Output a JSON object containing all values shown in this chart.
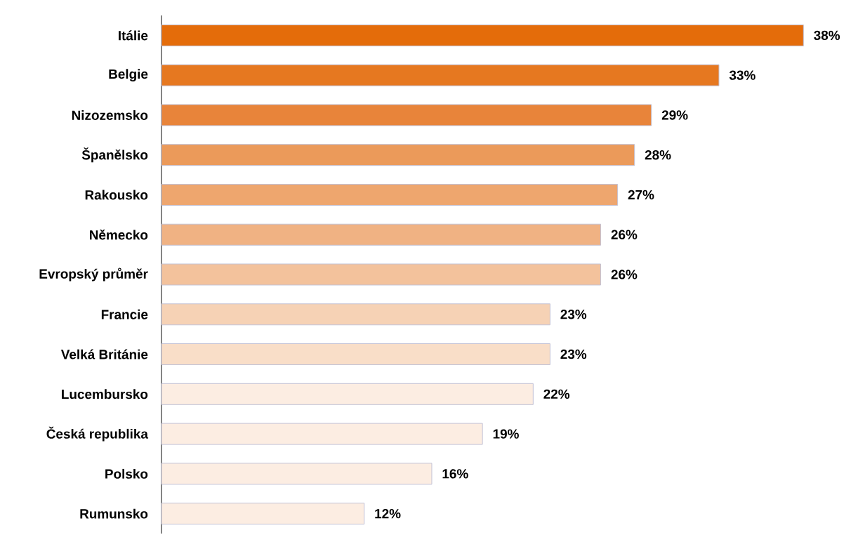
{
  "chart_data": {
    "type": "bar",
    "orientation": "horizontal",
    "categories": [
      "Itálie",
      "Belgie",
      "Nizozemsko",
      "Španělsko",
      "Rakousko",
      "Německo",
      "Evropský průměr",
      "Francie",
      "Velká Británie",
      "Lucembursko",
      "Česká republika",
      "Polsko",
      "Rumunsko"
    ],
    "values": [
      38,
      33,
      29,
      28,
      27,
      26,
      26,
      23,
      23,
      22,
      19,
      16,
      12
    ],
    "value_labels": [
      "38%",
      "33%",
      "29%",
      "28%",
      "27%",
      "26%",
      "26%",
      "23%",
      "23%",
      "22%",
      "19%",
      "16%",
      "12%"
    ],
    "colors": [
      "#e46c0a",
      "#e67820",
      "#e8843a",
      "#eb9a5a",
      "#eea66e",
      "#f0b283",
      "#f3c29c",
      "#f6d2b5",
      "#f9dec8",
      "#fcede2",
      "#fcede2",
      "#fcede2",
      "#fcede2"
    ]
  }
}
